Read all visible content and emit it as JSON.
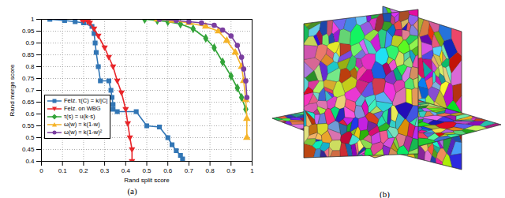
{
  "chart_data": {
    "type": "line",
    "caption": "(a)",
    "xlabel": "Rand split score",
    "ylabel": "Rand merge score",
    "xlim": [
      0,
      1
    ],
    "ylim": [
      0.4,
      1
    ],
    "xticks": [
      0,
      0.1,
      0.2,
      0.3,
      0.4,
      0.5,
      0.6,
      0.7,
      0.8,
      0.9,
      1
    ],
    "yticks": [
      0.4,
      0.45,
      0.5,
      0.55,
      0.6,
      0.65,
      0.7,
      0.75,
      0.8,
      0.85,
      0.9,
      0.95,
      1
    ],
    "grid": true,
    "legend": "left",
    "series": [
      {
        "name": "Felz. τ(C) = k/|C|",
        "color": "#3276b5",
        "marker": "square",
        "x": [
          0.04,
          0.11,
          0.16,
          0.2,
          0.24,
          0.25,
          0.255,
          0.26,
          0.27,
          0.28,
          0.32,
          0.33,
          0.335,
          0.34,
          0.34,
          0.36,
          0.45,
          0.5,
          0.56,
          0.6,
          0.62,
          0.64,
          0.66,
          0.67
        ],
        "values": [
          1.0,
          0.995,
          0.99,
          0.985,
          0.97,
          0.94,
          0.9,
          0.86,
          0.8,
          0.74,
          0.74,
          0.7,
          0.67,
          0.64,
          0.62,
          0.61,
          0.61,
          0.55,
          0.545,
          0.5,
          0.47,
          0.445,
          0.425,
          0.41
        ]
      },
      {
        "name": "Felz. on WBG",
        "color": "#e8262a",
        "marker": "triangle-down",
        "x": [
          0.19,
          0.2,
          0.22,
          0.23,
          0.25,
          0.27,
          0.3,
          0.32,
          0.34,
          0.36,
          0.38,
          0.4,
          0.41,
          0.42,
          0.43,
          0.43
        ],
        "values": [
          1.0,
          0.995,
          0.99,
          0.985,
          0.96,
          0.93,
          0.88,
          0.84,
          0.8,
          0.74,
          0.69,
          0.62,
          0.56,
          0.5,
          0.45,
          0.4
        ]
      },
      {
        "name": "τ(s) = u(k·s)",
        "color": "#34a43a",
        "marker": "diamond",
        "x": [
          0.49,
          0.55,
          0.6,
          0.66,
          0.72,
          0.78,
          0.82,
          0.86,
          0.9,
          0.93,
          0.95,
          0.97
        ],
        "values": [
          1.0,
          0.995,
          0.99,
          0.98,
          0.96,
          0.92,
          0.88,
          0.82,
          0.76,
          0.71,
          0.67,
          0.62
        ]
      },
      {
        "name": "ω(w) = k(1-w)",
        "color": "#f5b328",
        "marker": "triangle",
        "x": [
          0.55,
          0.62,
          0.7,
          0.78,
          0.84,
          0.88,
          0.92,
          0.95,
          0.96,
          0.97,
          0.975,
          0.975
        ],
        "values": [
          1.0,
          0.995,
          0.985,
          0.97,
          0.95,
          0.91,
          0.86,
          0.8,
          0.74,
          0.66,
          0.58,
          0.5
        ]
      },
      {
        "name": "ω(w) = k(1-w)²",
        "color": "#7b3fa0",
        "marker": "circle",
        "x": [
          0.56,
          0.64,
          0.7,
          0.76,
          0.82,
          0.86,
          0.9,
          0.93,
          0.95,
          0.96,
          0.97,
          0.975
        ],
        "values": [
          1.0,
          0.995,
          0.99,
          0.985,
          0.975,
          0.955,
          0.93,
          0.89,
          0.84,
          0.79,
          0.74,
          0.67
        ]
      }
    ]
  },
  "panel_b": {
    "caption": "(b)"
  }
}
